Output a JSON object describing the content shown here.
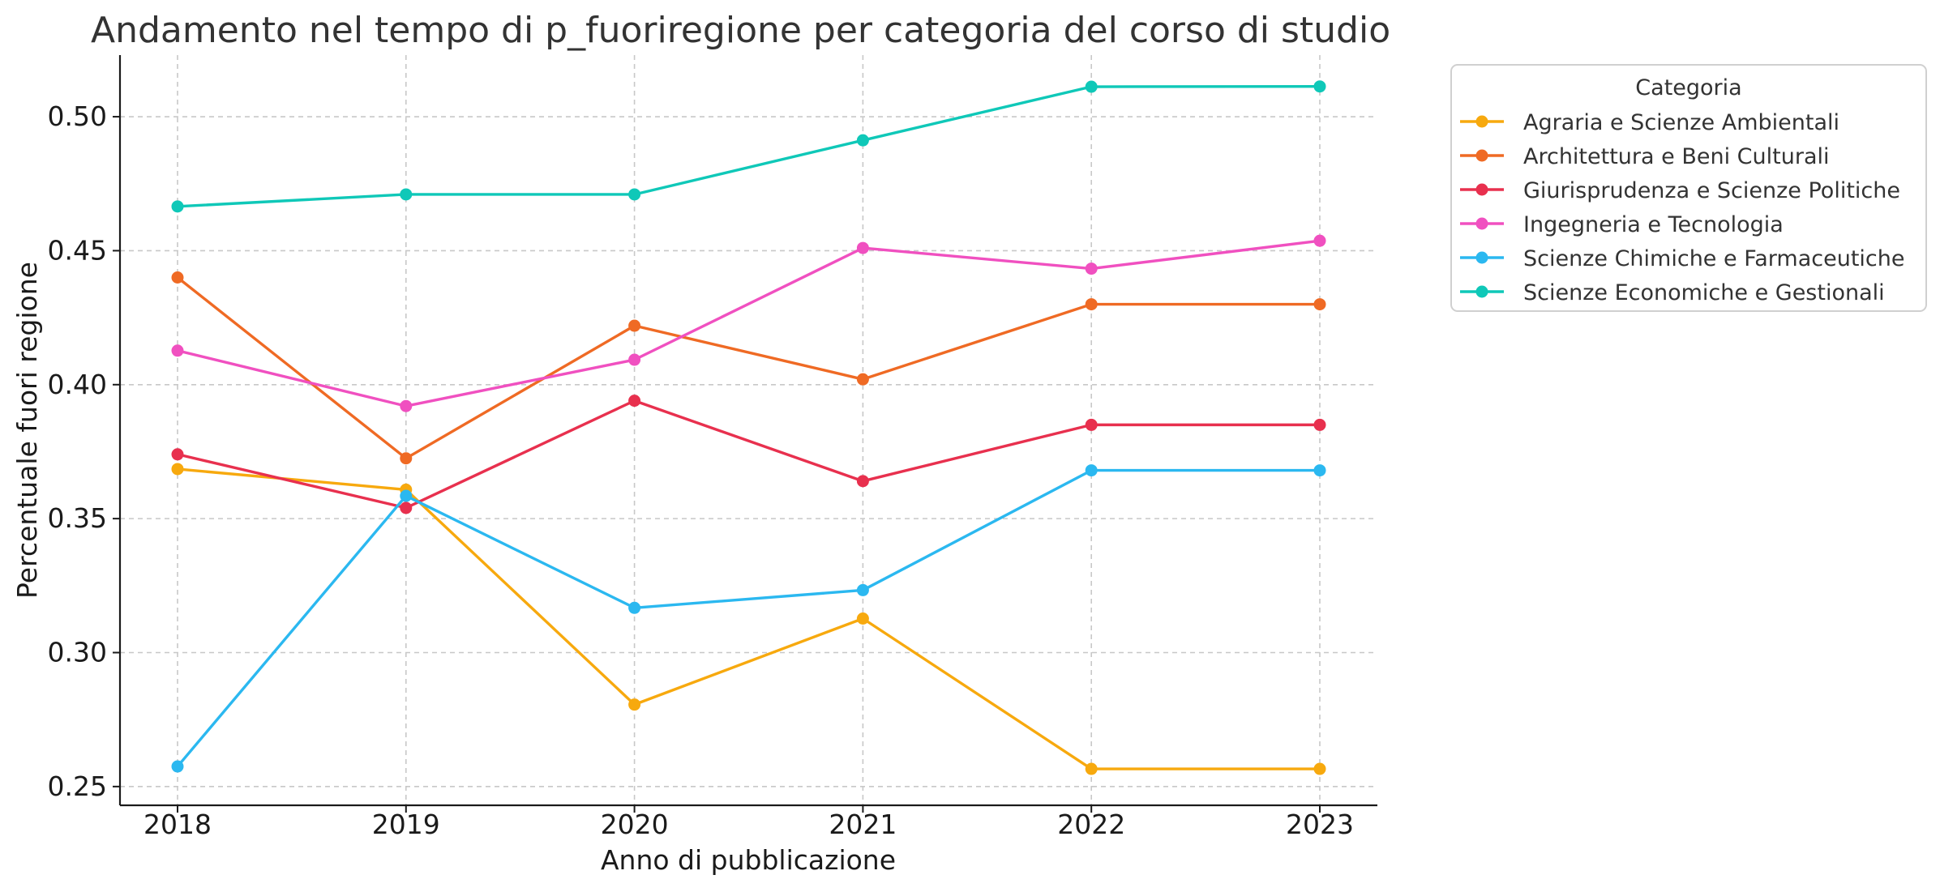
{
  "chart_data": {
    "type": "line",
    "title": "Andamento nel tempo di p_fuoriregione per categoria del corso di studio",
    "xlabel": "Anno di pubblicazione",
    "ylabel": "Percentuale fuori regione",
    "x": [
      "2018",
      "2019",
      "2020",
      "2021",
      "2022",
      "2023"
    ],
    "ylim": [
      0.243,
      0.523
    ],
    "yticks": [
      0.25,
      0.3,
      0.35,
      0.4,
      0.45,
      0.5
    ],
    "ytick_labels": [
      "0.25",
      "0.30",
      "0.35",
      "0.40",
      "0.45",
      "0.50"
    ],
    "grid": true,
    "legend": {
      "title": "Categoria",
      "placement": "outside-top-right"
    },
    "series": [
      {
        "name": "Agraria e Scienze Ambientali",
        "color": "#f7a90e",
        "values": [
          0.3685,
          0.3608,
          0.2806,
          0.3127,
          0.2566,
          0.2566
        ]
      },
      {
        "name": "Architettura e Beni Culturali",
        "color": "#ef6a24",
        "values": [
          0.44,
          0.3725,
          0.422,
          0.402,
          0.43,
          0.43
        ]
      },
      {
        "name": "Giurisprudenza e Scienze Politiche",
        "color": "#e8304e",
        "values": [
          0.374,
          0.354,
          0.394,
          0.364,
          0.385,
          0.385
        ]
      },
      {
        "name": "Ingegneria e Tecnologia",
        "color": "#f050c0",
        "values": [
          0.4127,
          0.392,
          0.4093,
          0.451,
          0.4433,
          0.4537
        ]
      },
      {
        "name": "Scienze Chimiche e Farmaceutiche",
        "color": "#2bb8f0",
        "values": [
          0.2575,
          0.3585,
          0.3167,
          0.3233,
          0.368,
          0.368
        ]
      },
      {
        "name": "Scienze Economiche e Gestionali",
        "color": "#0fc8b8",
        "values": [
          0.4665,
          0.471,
          0.471,
          0.4912,
          0.5112,
          0.5113
        ]
      }
    ]
  }
}
